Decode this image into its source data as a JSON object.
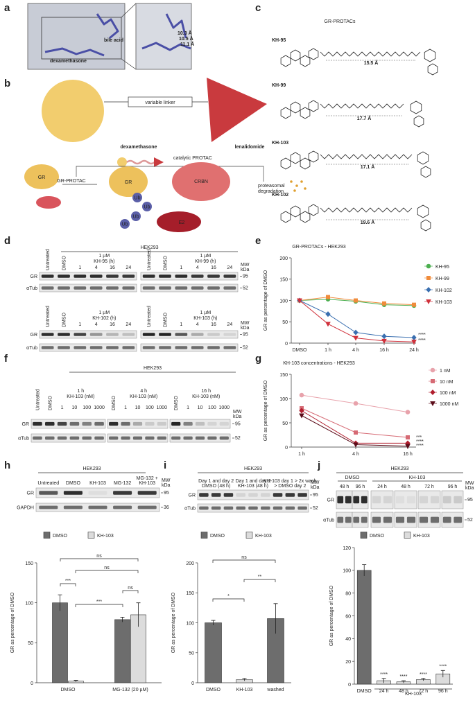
{
  "panels": {
    "a": {
      "label": "a",
      "texts": [
        "bile acid",
        "dexamethasone",
        "10.3 Å",
        "10.5 Å",
        "11.1 Å"
      ]
    },
    "b": {
      "label": "b",
      "texts": [
        "variable linker",
        "dexamethasone",
        "lenalidomide",
        "catalytic PROTAC",
        "GR-PROTAC",
        "GR",
        "GR",
        "CRBN",
        "Ub",
        "Ub",
        "Ub",
        "Ub",
        "E2",
        "proteasomal",
        "degradation"
      ]
    },
    "c": {
      "label": "c",
      "title": "GR-PROTACs",
      "compounds": [
        {
          "name": "KH-95",
          "color": "#5cb85c",
          "distance": "15.5 Å"
        },
        {
          "name": "KH-99",
          "color": "#f0a030",
          "distance": "17.7 Å"
        },
        {
          "name": "KH-103",
          "color": "#d0303a",
          "distance": "17.1 Å"
        },
        {
          "name": "KH-102",
          "color": "#3a6fb0",
          "distance": "19.6 Å"
        }
      ]
    },
    "d": {
      "label": "d",
      "cell_line": "HEK293",
      "rows": [
        "GR",
        "αTub"
      ],
      "mw": [
        "95",
        "52"
      ],
      "mw_header": [
        "MW",
        "kDa"
      ],
      "blots": [
        {
          "lanes": [
            [
              "Untreated"
            ],
            [
              "DMSO"
            ],
            [
              "1"
            ],
            [
              "4"
            ],
            [
              "16"
            ],
            [
              "24"
            ],
            [
              "Untreated"
            ],
            [
              "DMSO"
            ],
            [
              "1"
            ],
            [
              "4"
            ],
            [
              "16"
            ],
            [
              "24"
            ]
          ],
          "groups": [
            [
              "1 µM",
              "KH-95 (h)"
            ],
            [
              "1 µM",
              "KH-99 (h)"
            ]
          ]
        },
        {
          "lanes": [
            [
              "Untreated"
            ],
            [
              "DMSO"
            ],
            [
              "1"
            ],
            [
              "4"
            ],
            [
              "16"
            ],
            [
              "24"
            ],
            [
              "Untreated"
            ],
            [
              "DMSO"
            ],
            [
              "1"
            ],
            [
              "4"
            ],
            [
              "16"
            ],
            [
              "24"
            ]
          ],
          "groups": [
            [
              "1 µM",
              "KH-102 (h)"
            ],
            [
              "1 µM",
              "KH-103 (h)"
            ]
          ]
        }
      ]
    },
    "e": {
      "label": "e"
    },
    "f": {
      "label": "f",
      "cell_line": "HEK293",
      "rows": [
        "GR",
        "αTub"
      ],
      "mw": [
        "95",
        "52"
      ],
      "mw_header": [
        "MW",
        "kDa"
      ],
      "lanes": [
        [
          "Untreated"
        ],
        [
          "DMSO"
        ],
        [
          "1"
        ],
        [
          "10"
        ],
        [
          "100"
        ],
        [
          "1000"
        ],
        [
          "DMSO"
        ],
        [
          "1"
        ],
        [
          "10"
        ],
        [
          "100"
        ],
        [
          "1000"
        ],
        [
          "DMSO"
        ],
        [
          "1"
        ],
        [
          "10"
        ],
        [
          "100"
        ],
        [
          "1000"
        ]
      ],
      "groups": [
        [
          "1 h",
          "KH-103 (nM)"
        ],
        [
          "4 h",
          "KH-103 (nM)"
        ],
        [
          "16 h",
          "KH-103 (nM)"
        ]
      ]
    },
    "g": {
      "label": "g"
    },
    "h": {
      "label": "h",
      "cell_line": "HEK293",
      "rows": [
        "GR",
        "GAPDH"
      ],
      "mw": [
        "95",
        "36"
      ],
      "mw_header": [
        "MW",
        "kDa"
      ],
      "lanes": [
        [
          "Untreated"
        ],
        [
          "DMSO"
        ],
        [
          "KH-103"
        ],
        [
          "MG-132"
        ],
        [
          "MG-132 +",
          "KH-103"
        ]
      ]
    },
    "i": {
      "label": "i",
      "cell_line": "HEK293",
      "rows": [
        "GR",
        "αTub"
      ],
      "mw": [
        "95",
        "52"
      ],
      "mw_header": [
        "MW",
        "kDa"
      ],
      "lanes": [
        [
          "Day 1 and day 2",
          "DMSO (48 h)"
        ],
        [
          "Day 1 and day 2",
          "KH-103 (48 h)"
        ],
        [
          "KH-103 day 1 > 2x wash",
          "> DMSO day 2"
        ]
      ]
    },
    "j": {
      "label": "j",
      "cell_line": "HEK293",
      "rows": [
        "GR",
        "αTub"
      ],
      "mw": [
        "95",
        "52"
      ],
      "mw_header": [
        "MW",
        "kDa"
      ],
      "groups": [
        [
          "DMSO"
        ],
        [
          "KH-103"
        ]
      ],
      "lanes": [
        [
          "48 h"
        ],
        [
          "96 h"
        ],
        [
          "24 h"
        ],
        [
          "48 h"
        ],
        [
          "72 h"
        ],
        [
          "96 h"
        ]
      ]
    }
  },
  "chart_data": [
    {
      "type": "line",
      "title": "GR-PROTACs - HEK293",
      "y_label": "GR as percentage of DMSO",
      "categories": [
        "DMSO",
        "1 h",
        "4 h",
        "16 h",
        "24 h"
      ],
      "series": [
        {
          "name": "KH-95",
          "color": "#4caf50",
          "marker": "circle",
          "values": [
            100,
            103,
            98,
            90,
            88
          ]
        },
        {
          "name": "KH-99",
          "color": "#f08c3c",
          "marker": "square",
          "values": [
            100,
            108,
            100,
            93,
            90
          ]
        },
        {
          "name": "KH-102",
          "color": "#3a6fb0",
          "marker": "diamond",
          "values": [
            100,
            68,
            25,
            16,
            13
          ]
        },
        {
          "name": "KH-103",
          "color": "#d0303a",
          "marker": "triangle",
          "values": [
            100,
            45,
            12,
            5,
            3
          ]
        }
      ],
      "ylim": [
        0,
        200
      ],
      "yticks": [
        0,
        50,
        100,
        150,
        200
      ],
      "annotations": [
        "****",
        "****"
      ],
      "legend": "right"
    },
    {
      "type": "line",
      "title": "KH-103 concentrations - HEK293",
      "y_label": "GR as percentage of DMSO",
      "categories": [
        "1 h",
        "4 h",
        "16 h"
      ],
      "series": [
        {
          "name": "1 nM",
          "color": "#e8a2ab",
          "marker": "circle",
          "values": [
            107,
            90,
            72
          ]
        },
        {
          "name": "10 nM",
          "color": "#d66a74",
          "marker": "square",
          "values": [
            80,
            30,
            20
          ]
        },
        {
          "name": "100 nM",
          "color": "#b01d2d",
          "marker": "diamond",
          "values": [
            75,
            8,
            8
          ]
        },
        {
          "name": "1000 nM",
          "color": "#5c0d1a",
          "marker": "triangle",
          "values": [
            65,
            5,
            2
          ]
        }
      ],
      "ylim": [
        0,
        150
      ],
      "yticks": [
        0,
        50,
        100,
        150
      ],
      "annotations": [
        "***",
        "****",
        "****"
      ],
      "legend": "right"
    },
    {
      "type": "bar",
      "grouped": true,
      "y_label": "GR as percentage of DMSO",
      "categories": [
        "DMSO",
        "MG-132 (20 µM)"
      ],
      "series": [
        {
          "name": "DMSO",
          "color": "#6d6d6d",
          "values": [
            100,
            79
          ],
          "errors": [
            10,
            3
          ]
        },
        {
          "name": "KH-103",
          "color": "#dcdcdc",
          "values": [
            2,
            85
          ],
          "errors": [
            1,
            15
          ]
        }
      ],
      "ylim": [
        0,
        150
      ],
      "yticks": [
        0,
        50,
        100,
        150
      ],
      "annotations": [
        "ns",
        "ns",
        "***",
        "ns",
        "***"
      ],
      "legend": "top"
    },
    {
      "type": "bar",
      "grouped": false,
      "y_label": "GR as percentage of DMSO",
      "categories": [
        "DMSO",
        "KH-103",
        "washed"
      ],
      "series": [
        {
          "name": "DMSO",
          "color": "#6d6d6d",
          "values": [
            100,
            null,
            107
          ],
          "errors": [
            4,
            null,
            25
          ]
        },
        {
          "name": "KH-103",
          "color": "#dcdcdc",
          "values": [
            null,
            5,
            null
          ],
          "errors": [
            null,
            2,
            null
          ]
        }
      ],
      "ylim": [
        0,
        200
      ],
      "yticks": [
        0,
        50,
        100,
        150,
        200
      ],
      "annotations": [
        "ns",
        "**",
        "*"
      ],
      "legend": "top"
    },
    {
      "type": "bar",
      "grouped": false,
      "y_label": "GR as percentage of DMSO",
      "group_label": "KH-103",
      "categories": [
        "DMSO",
        "24 h",
        "48 h",
        "72 h",
        "96 h"
      ],
      "series": [
        {
          "name": "DMSO",
          "color": "#6d6d6d",
          "values": [
            100,
            null,
            null,
            null,
            null
          ],
          "errors": [
            5,
            null,
            null,
            null,
            null
          ]
        },
        {
          "name": "KH-103",
          "color": "#dcdcdc",
          "values": [
            null,
            3,
            2,
            4,
            9
          ],
          "errors": [
            null,
            2,
            1,
            1,
            3
          ]
        }
      ],
      "ylim": [
        0,
        120
      ],
      "yticks": [
        0,
        20,
        40,
        60,
        80,
        100,
        120
      ],
      "annotations": [
        "****",
        "****",
        "****",
        "****"
      ],
      "legend": "top"
    }
  ]
}
